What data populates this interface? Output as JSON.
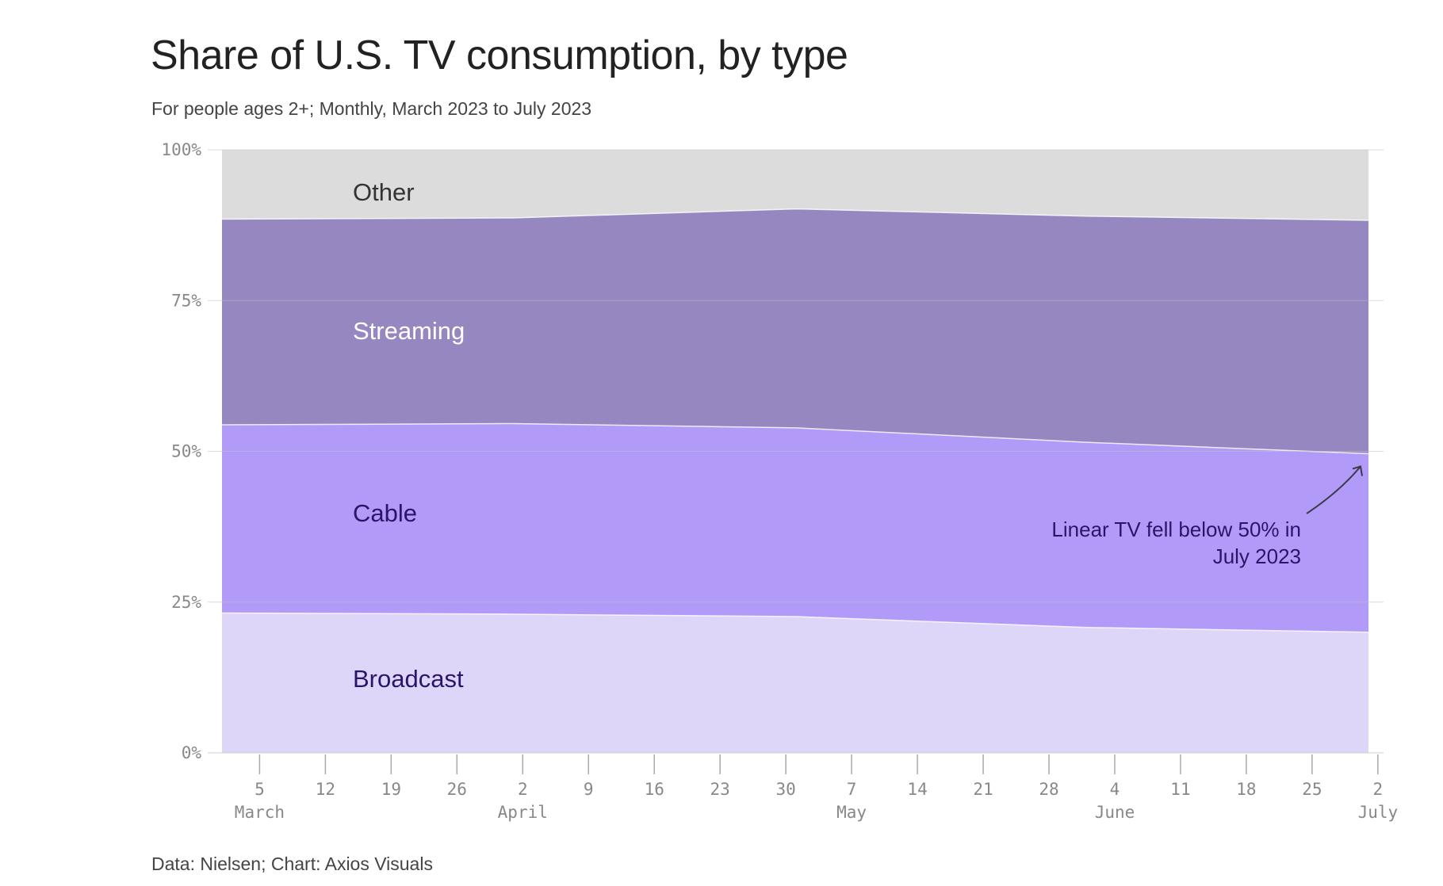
{
  "chart_data": {
    "type": "area",
    "stacked": true,
    "title": "Share of U.S. TV consumption, by type",
    "subtitle": "For people ages 2+; Monthly, March 2023 to July 2023",
    "source": "Data: Nielsen; Chart: Axios Visuals",
    "x": [
      "2023-03-01",
      "2023-04-01",
      "2023-05-01",
      "2023-06-01",
      "2023-07-01"
    ],
    "ylim": [
      0,
      100
    ],
    "y_ticks": [
      "0%",
      "25%",
      "50%",
      "75%",
      "100%"
    ],
    "x_ticks": [
      {
        "date": "2023-03-05",
        "day": "5",
        "month": "March"
      },
      {
        "date": "2023-03-12",
        "day": "12",
        "month": ""
      },
      {
        "date": "2023-03-19",
        "day": "19",
        "month": ""
      },
      {
        "date": "2023-03-26",
        "day": "26",
        "month": ""
      },
      {
        "date": "2023-04-02",
        "day": "2",
        "month": "April"
      },
      {
        "date": "2023-04-09",
        "day": "9",
        "month": ""
      },
      {
        "date": "2023-04-16",
        "day": "16",
        "month": ""
      },
      {
        "date": "2023-04-23",
        "day": "23",
        "month": ""
      },
      {
        "date": "2023-04-30",
        "day": "30",
        "month": ""
      },
      {
        "date": "2023-05-07",
        "day": "7",
        "month": "May"
      },
      {
        "date": "2023-05-14",
        "day": "14",
        "month": ""
      },
      {
        "date": "2023-05-21",
        "day": "21",
        "month": ""
      },
      {
        "date": "2023-05-28",
        "day": "28",
        "month": ""
      },
      {
        "date": "2023-06-04",
        "day": "4",
        "month": "June"
      },
      {
        "date": "2023-06-11",
        "day": "11",
        "month": ""
      },
      {
        "date": "2023-06-18",
        "day": "18",
        "month": ""
      },
      {
        "date": "2023-06-25",
        "day": "25",
        "month": ""
      },
      {
        "date": "2023-07-02",
        "day": "2",
        "month": "July"
      }
    ],
    "series": [
      {
        "name": "Broadcast",
        "values": [
          23.2,
          23.0,
          22.6,
          20.8,
          20.0
        ],
        "color": "#ddd6f9",
        "label_color": "#2a1568"
      },
      {
        "name": "Cable",
        "values": [
          31.2,
          31.6,
          31.3,
          30.7,
          29.6
        ],
        "color": "#b29bf8",
        "label_color": "#2a1568"
      },
      {
        "name": "Streaming",
        "values": [
          34.1,
          34.1,
          36.3,
          37.5,
          38.7
        ],
        "color": "#9787c0",
        "label_color": "#ffffff"
      },
      {
        "name": "Other",
        "values": [
          11.5,
          11.3,
          9.8,
          11.0,
          11.7
        ],
        "color": "#dcdcdc",
        "label_color": "#333333"
      }
    ],
    "grid": true,
    "annotation": {
      "text_lines": [
        "Linear TV fell below 50% in",
        "July 2023"
      ],
      "target_date": "2023-07-01",
      "target_value": 49.6
    }
  }
}
